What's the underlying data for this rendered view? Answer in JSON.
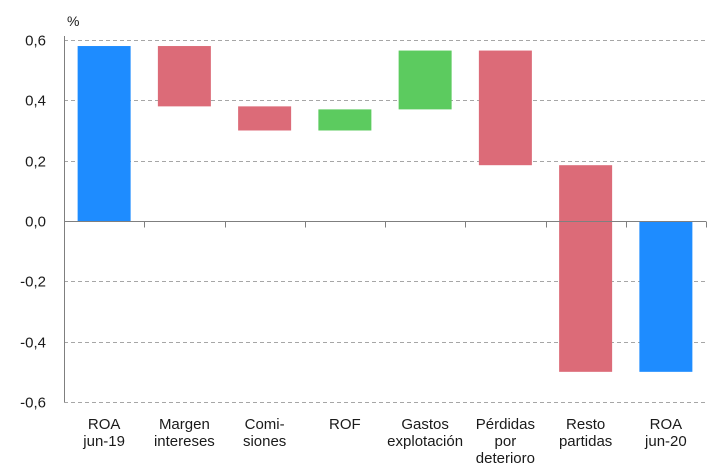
{
  "chart_data": {
    "type": "waterfall",
    "unit": "%",
    "ylim": [
      -0.6,
      0.6
    ],
    "yticks": [
      -0.6,
      -0.4,
      -0.2,
      0.0,
      0.2,
      0.4,
      0.6
    ],
    "ytick_labels": [
      "-0,6",
      "-0,4",
      "-0,2",
      "0,0",
      "0,2",
      "0,4",
      "0,6"
    ],
    "grid": true,
    "bars": [
      {
        "label": [
          "ROA",
          "jun-19"
        ],
        "start": 0.0,
        "end": 0.58,
        "kind": "total"
      },
      {
        "label": [
          "Margen",
          "intereses"
        ],
        "start": 0.58,
        "end": 0.38,
        "kind": "decrease"
      },
      {
        "label": [
          "Comi-",
          "siones"
        ],
        "start": 0.38,
        "end": 0.3,
        "kind": "decrease"
      },
      {
        "label": [
          "ROF"
        ],
        "start": 0.3,
        "end": 0.37,
        "kind": "increase"
      },
      {
        "label": [
          "Gastos",
          "explotación"
        ],
        "start": 0.37,
        "end": 0.565,
        "kind": "increase"
      },
      {
        "label": [
          "Pérdidas",
          "por",
          "deterioro"
        ],
        "start": 0.565,
        "end": 0.185,
        "kind": "decrease"
      },
      {
        "label": [
          "Resto",
          "partidas"
        ],
        "start": 0.185,
        "end": -0.5,
        "kind": "decrease"
      },
      {
        "label": [
          "ROA",
          "jun-20"
        ],
        "start": 0.0,
        "end": -0.5,
        "kind": "total"
      }
    ],
    "colors": {
      "total": "#1e8cff",
      "decrease": "#dc6b78",
      "increase": "#5ccb5f"
    }
  }
}
